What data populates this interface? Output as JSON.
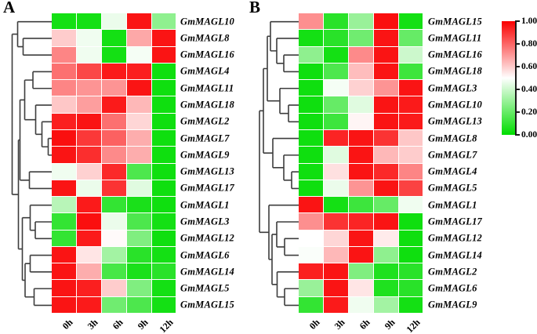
{
  "panels": {
    "a_label": "A",
    "b_label": "B"
  },
  "colorbar": {
    "ticks": [
      "1.00",
      "0.80",
      "0.60",
      "0.40",
      "0.20",
      "0.00"
    ],
    "max_color": "#fa0000",
    "mid_color": "#ffffff",
    "min_color": "#00dd00"
  },
  "chart_data": [
    {
      "type": "heatmap",
      "panel": "A",
      "x_labels": [
        "0h",
        "3h",
        "6h",
        "9h",
        "12h"
      ],
      "y_labels": [
        "GmMAGL10",
        "GmMAGL8",
        "GmMAGL16",
        "GmMAGL4",
        "GmMAGL11",
        "GmMAGL18",
        "GmMAGL2",
        "GmMAGL7",
        "GmMAGL9",
        "GmMAGL13",
        "GmMAGL17",
        "GmMAGL1",
        "GmMAGL3",
        "GmMAGL12",
        "GmMAGL6",
        "GmMAGL14",
        "GmMAGL5",
        "GmMAGL15"
      ],
      "values": [
        [
          0.04,
          0.04,
          0.46,
          0.96,
          0.28
        ],
        [
          0.6,
          0.47,
          0.04,
          0.67,
          0.96
        ],
        [
          0.74,
          0.47,
          0.04,
          0.48,
          0.96
        ],
        [
          0.78,
          0.86,
          0.95,
          0.94,
          0.03
        ],
        [
          0.74,
          0.71,
          0.71,
          0.96,
          0.03
        ],
        [
          0.61,
          0.69,
          0.95,
          0.64,
          0.03
        ],
        [
          0.94,
          0.96,
          0.78,
          0.58,
          0.03
        ],
        [
          0.97,
          0.89,
          0.81,
          0.66,
          0.03
        ],
        [
          0.96,
          0.91,
          0.73,
          0.66,
          0.03
        ],
        [
          0.47,
          0.59,
          0.92,
          0.15,
          0.03
        ],
        [
          0.96,
          0.46,
          0.9,
          0.44,
          0.03
        ],
        [
          0.36,
          0.95,
          0.1,
          0.05,
          0.03
        ],
        [
          0.1,
          0.97,
          0.46,
          0.15,
          0.04
        ],
        [
          0.1,
          0.95,
          0.51,
          0.25,
          0.03
        ],
        [
          0.96,
          0.55,
          0.32,
          0.08,
          0.04
        ],
        [
          0.96,
          0.66,
          0.14,
          0.05,
          0.08
        ],
        [
          0.96,
          0.94,
          0.6,
          0.25,
          0.04
        ],
        [
          0.96,
          0.95,
          0.22,
          0.15,
          0.04
        ]
      ],
      "colorscale": {
        "min": 0.0,
        "mid": 0.5,
        "max": 1.0
      },
      "dendrogram": {
        "x": 5.5,
        "children": [
          {
            "x": 12.5,
            "children": [
              {
                "leaf": 0
              },
              {
                "x": 19.5,
                "children": [
                  {
                    "leaf": 1
                  },
                  {
                    "leaf": 2
                  }
                ]
              }
            ]
          },
          {
            "x": 13.5,
            "children": [
              {
                "x": 15.5,
                "children": [
                  {
                    "x": 21.5,
                    "children": [
                      {
                        "x": 32,
                        "children": [
                          {
                            "leaf": 3
                          },
                          {
                            "leaf": 4
                          }
                        ]
                      },
                      {
                        "x": 35.5,
                        "children": [
                          {
                            "leaf": 5
                          },
                          {
                            "x": 43.5,
                            "children": [
                              {
                                "leaf": 6
                              },
                              {
                                "x": 51.5,
                                "children": [
                                  {
                                    "leaf": 7
                                  },
                                  {
                                    "leaf": 8
                                  }
                                ]
                              }
                            ]
                          }
                        ]
                      }
                    ]
                  },
                  {
                    "x": 27.5,
                    "children": [
                      {
                        "leaf": 9
                      },
                      {
                        "leaf": 10
                      }
                    ]
                  }
                ]
              },
              {
                "x": 18.5,
                "children": [
                  {
                    "x": 28.5,
                    "children": [
                      {
                        "leaf": 11
                      },
                      {
                        "x": 35,
                        "children": [
                          {
                            "leaf": 12
                          },
                          {
                            "leaf": 13
                          }
                        ]
                      }
                    ]
                  },
                  {
                    "x": 22,
                    "children": [
                      {
                        "x": 28.5,
                        "children": [
                          {
                            "leaf": 14
                          },
                          {
                            "leaf": 15
                          }
                        ]
                      },
                      {
                        "x": 33.5,
                        "children": [
                          {
                            "leaf": 16
                          },
                          {
                            "leaf": 17
                          }
                        ]
                      }
                    ]
                  }
                ]
              }
            ]
          }
        ]
      }
    },
    {
      "type": "heatmap",
      "panel": "B",
      "x_labels": [
        "0h",
        "3h",
        "6h",
        "9h",
        "12h"
      ],
      "y_labels": [
        "GmMAGL15",
        "GmMAGL11",
        "GmMAGL16",
        "GmMAGL18",
        "GmMAGL3",
        "GmMAGL10",
        "GmMAGL13",
        "GmMAGL8",
        "GmMAGL7",
        "GmMAGL4",
        "GmMAGL5",
        "GmMAGL1",
        "GmMAGL17",
        "GmMAGL12",
        "GmMAGL14",
        "GmMAGL2",
        "GmMAGL6",
        "GmMAGL9"
      ],
      "values": [
        [
          0.72,
          0.08,
          0.3,
          0.97,
          0.04
        ],
        [
          0.04,
          0.08,
          0.22,
          0.96,
          0.2
        ],
        [
          0.28,
          0.04,
          0.73,
          0.96,
          0.4
        ],
        [
          0.03,
          0.15,
          0.63,
          0.96,
          0.12
        ],
        [
          0.03,
          0.48,
          0.59,
          0.71,
          0.96
        ],
        [
          0.03,
          0.2,
          0.44,
          0.96,
          0.95
        ],
        [
          0.03,
          0.12,
          0.52,
          0.96,
          0.95
        ],
        [
          0.03,
          0.93,
          0.96,
          0.9,
          0.61
        ],
        [
          0.03,
          0.44,
          0.96,
          0.64,
          0.6
        ],
        [
          0.03,
          0.56,
          0.96,
          0.92,
          0.74
        ],
        [
          0.03,
          0.46,
          0.71,
          0.96,
          0.87
        ],
        [
          0.96,
          0.04,
          0.12,
          0.2,
          0.47
        ],
        [
          0.72,
          0.9,
          0.93,
          0.96,
          0.03
        ],
        [
          0.5,
          0.58,
          0.96,
          0.54,
          0.03
        ],
        [
          0.49,
          0.64,
          0.96,
          0.28,
          0.03
        ],
        [
          0.94,
          0.96,
          0.25,
          0.06,
          0.08
        ],
        [
          0.3,
          0.96,
          0.55,
          0.06,
          0.08
        ],
        [
          0.1,
          0.95,
          0.47,
          0.32,
          0.04
        ]
      ],
      "colorscale": {
        "min": 0.0,
        "mid": 0.5,
        "max": 1.0
      },
      "dendrogram": {
        "x": 3,
        "children": [
          {
            "x": 8,
            "children": [
              {
                "x": 13,
                "children": [
                  {
                    "x": 17,
                    "children": [
                      {
                        "leaf": 0
                      },
                      {
                        "x": 25,
                        "children": [
                          {
                            "leaf": 1
                          },
                          {
                            "x": 34,
                            "children": [
                              {
                                "leaf": 2
                              },
                              {
                                "leaf": 3
                              }
                            ]
                          }
                        ]
                      }
                    ]
                  },
                  {
                    "x": 29,
                    "children": [
                      {
                        "leaf": 4
                      },
                      {
                        "x": 40,
                        "children": [
                          {
                            "leaf": 5
                          },
                          {
                            "leaf": 6
                          }
                        ]
                      }
                    ]
                  }
                ]
              },
              {
                "x": 20,
                "children": [
                  {
                    "leaf": 7
                  },
                  {
                    "x": 34,
                    "children": [
                      {
                        "leaf": 8
                      },
                      {
                        "x": 44,
                        "children": [
                          {
                            "leaf": 9
                          },
                          {
                            "leaf": 10
                          }
                        ]
                      }
                    ]
                  }
                ]
              }
            ]
          },
          {
            "x": 15,
            "children": [
              {
                "leaf": 11
              },
              {
                "x": 19,
                "children": [
                  {
                    "x": 25,
                    "children": [
                      {
                        "leaf": 12
                      },
                      {
                        "x": 35,
                        "children": [
                          {
                            "leaf": 13
                          },
                          {
                            "leaf": 14
                          }
                        ]
                      }
                    ]
                  },
                  {
                    "x": 25.5,
                    "children": [
                      {
                        "leaf": 15
                      },
                      {
                        "x": 35,
                        "children": [
                          {
                            "leaf": 16
                          },
                          {
                            "leaf": 17
                          }
                        ]
                      }
                    ]
                  }
                ]
              }
            ]
          }
        ]
      }
    }
  ]
}
